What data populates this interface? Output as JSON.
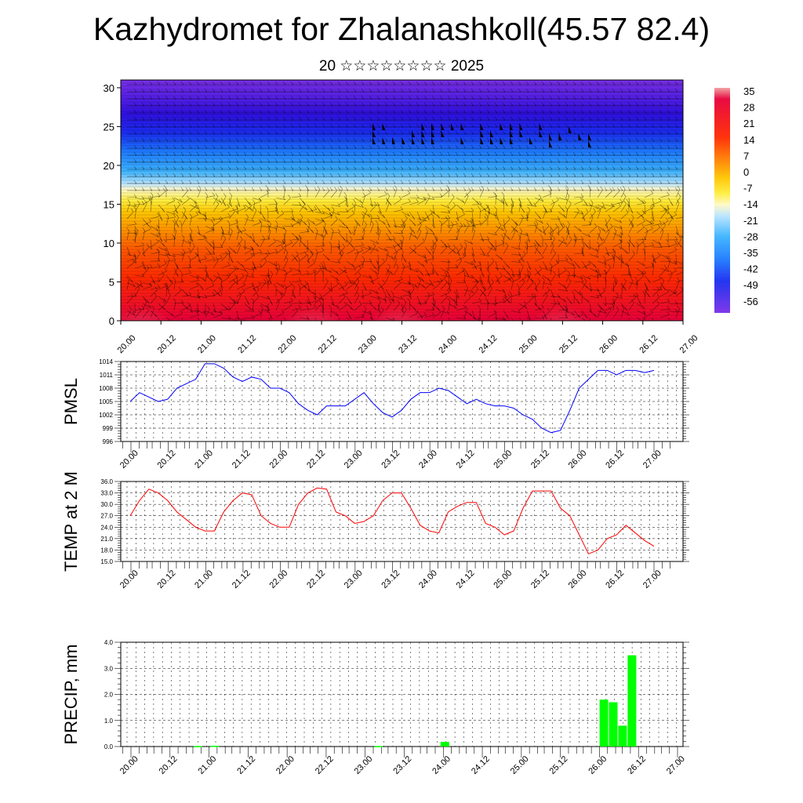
{
  "title": "Kazhydromet for Zhalanashkoll(45.57 82.4)",
  "subtitle": "20 ☆☆☆☆☆☆☆☆ 2025",
  "time_labels": [
    "20.00",
    "20.12",
    "21.00",
    "21.12",
    "22.00",
    "22.12",
    "23.00",
    "23.12",
    "24.00",
    "24.12",
    "25.00",
    "25.12",
    "26.00",
    "26.12",
    "27.00"
  ],
  "chart_data": [
    {
      "type": "heatmap",
      "name": "upper-panel",
      "x": [
        "20.00",
        "20.12",
        "21.00",
        "21.12",
        "22.00",
        "22.12",
        "23.00",
        "23.12",
        "24.00",
        "24.12",
        "25.00",
        "25.12",
        "26.00",
        "26.12",
        "27.00"
      ],
      "ylim": [
        0,
        31
      ],
      "yticks": [
        0,
        5,
        10,
        15,
        20,
        25,
        30
      ],
      "colorbar_labels": [
        35,
        28,
        21,
        14,
        7,
        0,
        -7,
        -14,
        -21,
        -28,
        -35,
        -42,
        -49,
        -56
      ]
    },
    {
      "type": "line",
      "ylabel": "PMSL",
      "ylim": [
        996,
        1014
      ],
      "yticks": [
        996,
        999,
        1002,
        1005,
        1008,
        1011,
        1014
      ],
      "color": "#0000ff",
      "values": [
        1005,
        1007,
        1006,
        1005,
        1005.5,
        1008,
        1009,
        1010,
        1013.5,
        1013.5,
        1012.5,
        1010.5,
        1009.5,
        1010.5,
        1010,
        1008,
        1008,
        1007,
        1004.5,
        1003,
        1002,
        1004,
        1004,
        1004,
        1005.5,
        1007,
        1004.5,
        1002.5,
        1001.5,
        1003,
        1005.5,
        1007,
        1007,
        1008,
        1007.5,
        1006,
        1004.5,
        1005.5,
        1004.5,
        1004,
        1004,
        1003.5,
        1002,
        1001,
        999,
        998,
        998.5,
        1003,
        1008,
        1010,
        1012,
        1012,
        1011,
        1012,
        1012,
        1011.5,
        1012
      ]
    },
    {
      "type": "line",
      "ylabel": "TEMP at 2 M",
      "ylim": [
        15,
        36
      ],
      "yticks": [
        "15.0",
        "18.0",
        "21.0",
        "24.0",
        "27.0",
        "30.0",
        "33.0",
        "36.0"
      ],
      "color": "#ff0000",
      "values": [
        27,
        31,
        34,
        33,
        31,
        28,
        26,
        24,
        23,
        23,
        28,
        31,
        33,
        32.5,
        27,
        25,
        24,
        24,
        30,
        33,
        34.3,
        34,
        28,
        27,
        25,
        25.5,
        27,
        31,
        33,
        33,
        29,
        24.5,
        23,
        22.5,
        28,
        29.5,
        30.5,
        30.5,
        25,
        24,
        22,
        23,
        29,
        33.5,
        33.5,
        33.5,
        29,
        27,
        22,
        17,
        18,
        21,
        22,
        24.5,
        22.5,
        20.5,
        19
      ]
    },
    {
      "type": "bar",
      "ylabel": "PRECIP, mm",
      "ylim": [
        0,
        4
      ],
      "yticks": [
        "0.0",
        "1.0",
        "2.0",
        "3.0",
        "4.0"
      ],
      "color": "#00ff00",
      "bars": [
        {
          "x": 7.2,
          "value": 0.02
        },
        {
          "x": 9.0,
          "value": 0.03
        },
        {
          "x": 26.5,
          "value": 0.02
        },
        {
          "x": 33.6,
          "value": 0.18
        },
        {
          "x": 50.6,
          "value": 1.8
        },
        {
          "x": 51.6,
          "value": 1.7
        },
        {
          "x": 52.6,
          "value": 0.8
        },
        {
          "x": 53.6,
          "value": 3.5
        }
      ]
    }
  ]
}
